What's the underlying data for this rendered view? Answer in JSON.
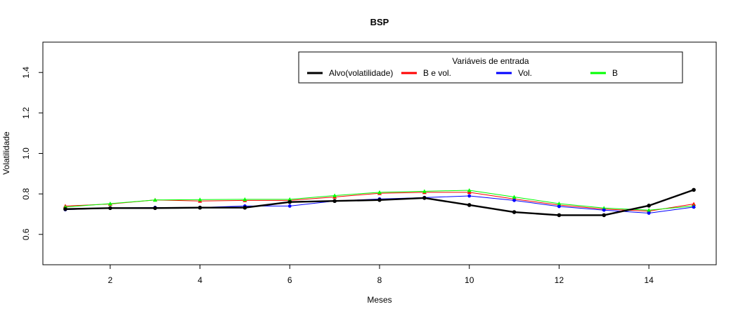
{
  "chart_data": {
    "type": "line",
    "title": "BSP",
    "xlabel": "Meses",
    "ylabel": "Volatilidade",
    "xlim": [
      0.5,
      15.5
    ],
    "ylim": [
      0.45,
      1.55
    ],
    "xticks": [
      2,
      4,
      6,
      8,
      10,
      12,
      14
    ],
    "yticks": [
      0.6,
      0.8,
      1.0,
      1.2,
      1.4
    ],
    "ytick_labels": [
      "0.6",
      "0.8",
      "1.0",
      "1.2",
      "1.4"
    ],
    "grid": false,
    "x": [
      1,
      2,
      3,
      4,
      5,
      6,
      7,
      8,
      9,
      10,
      11,
      12,
      13,
      14,
      15
    ],
    "legend": {
      "title": "Variáveis de entrada",
      "placement": "top-right"
    },
    "series": [
      {
        "name": "B e vol.",
        "color": "#ff0000",
        "line_width": 1,
        "marker": "triangle",
        "values": [
          0.74,
          0.75,
          0.77,
          0.765,
          0.768,
          0.768,
          0.785,
          0.803,
          0.808,
          0.808,
          0.775,
          0.745,
          0.725,
          0.715,
          0.75
        ]
      },
      {
        "name": "B",
        "color": "#00ff00",
        "line_width": 1,
        "marker": "triangle",
        "values": [
          0.735,
          0.752,
          0.77,
          0.772,
          0.773,
          0.773,
          0.792,
          0.808,
          0.813,
          0.818,
          0.785,
          0.752,
          0.73,
          0.72,
          0.74
        ]
      },
      {
        "name": "Vol.",
        "color": "#0000ff",
        "line_width": 1,
        "marker": "circle",
        "values": [
          0.722,
          0.73,
          0.733,
          0.733,
          0.74,
          0.74,
          0.765,
          0.775,
          0.782,
          0.79,
          0.768,
          0.738,
          0.72,
          0.705,
          0.735
        ]
      },
      {
        "name": "Alvo(volatilidade)",
        "color": "#000000",
        "line_width": 2.4,
        "marker": "circle",
        "values": [
          0.725,
          0.73,
          0.73,
          0.732,
          0.732,
          0.76,
          0.765,
          0.77,
          0.78,
          0.745,
          0.71,
          0.695,
          0.695,
          0.742,
          0.82
        ]
      }
    ],
    "legend_order": [
      "Alvo(volatilidade)",
      "B e vol.",
      "Vol.",
      "B"
    ]
  }
}
